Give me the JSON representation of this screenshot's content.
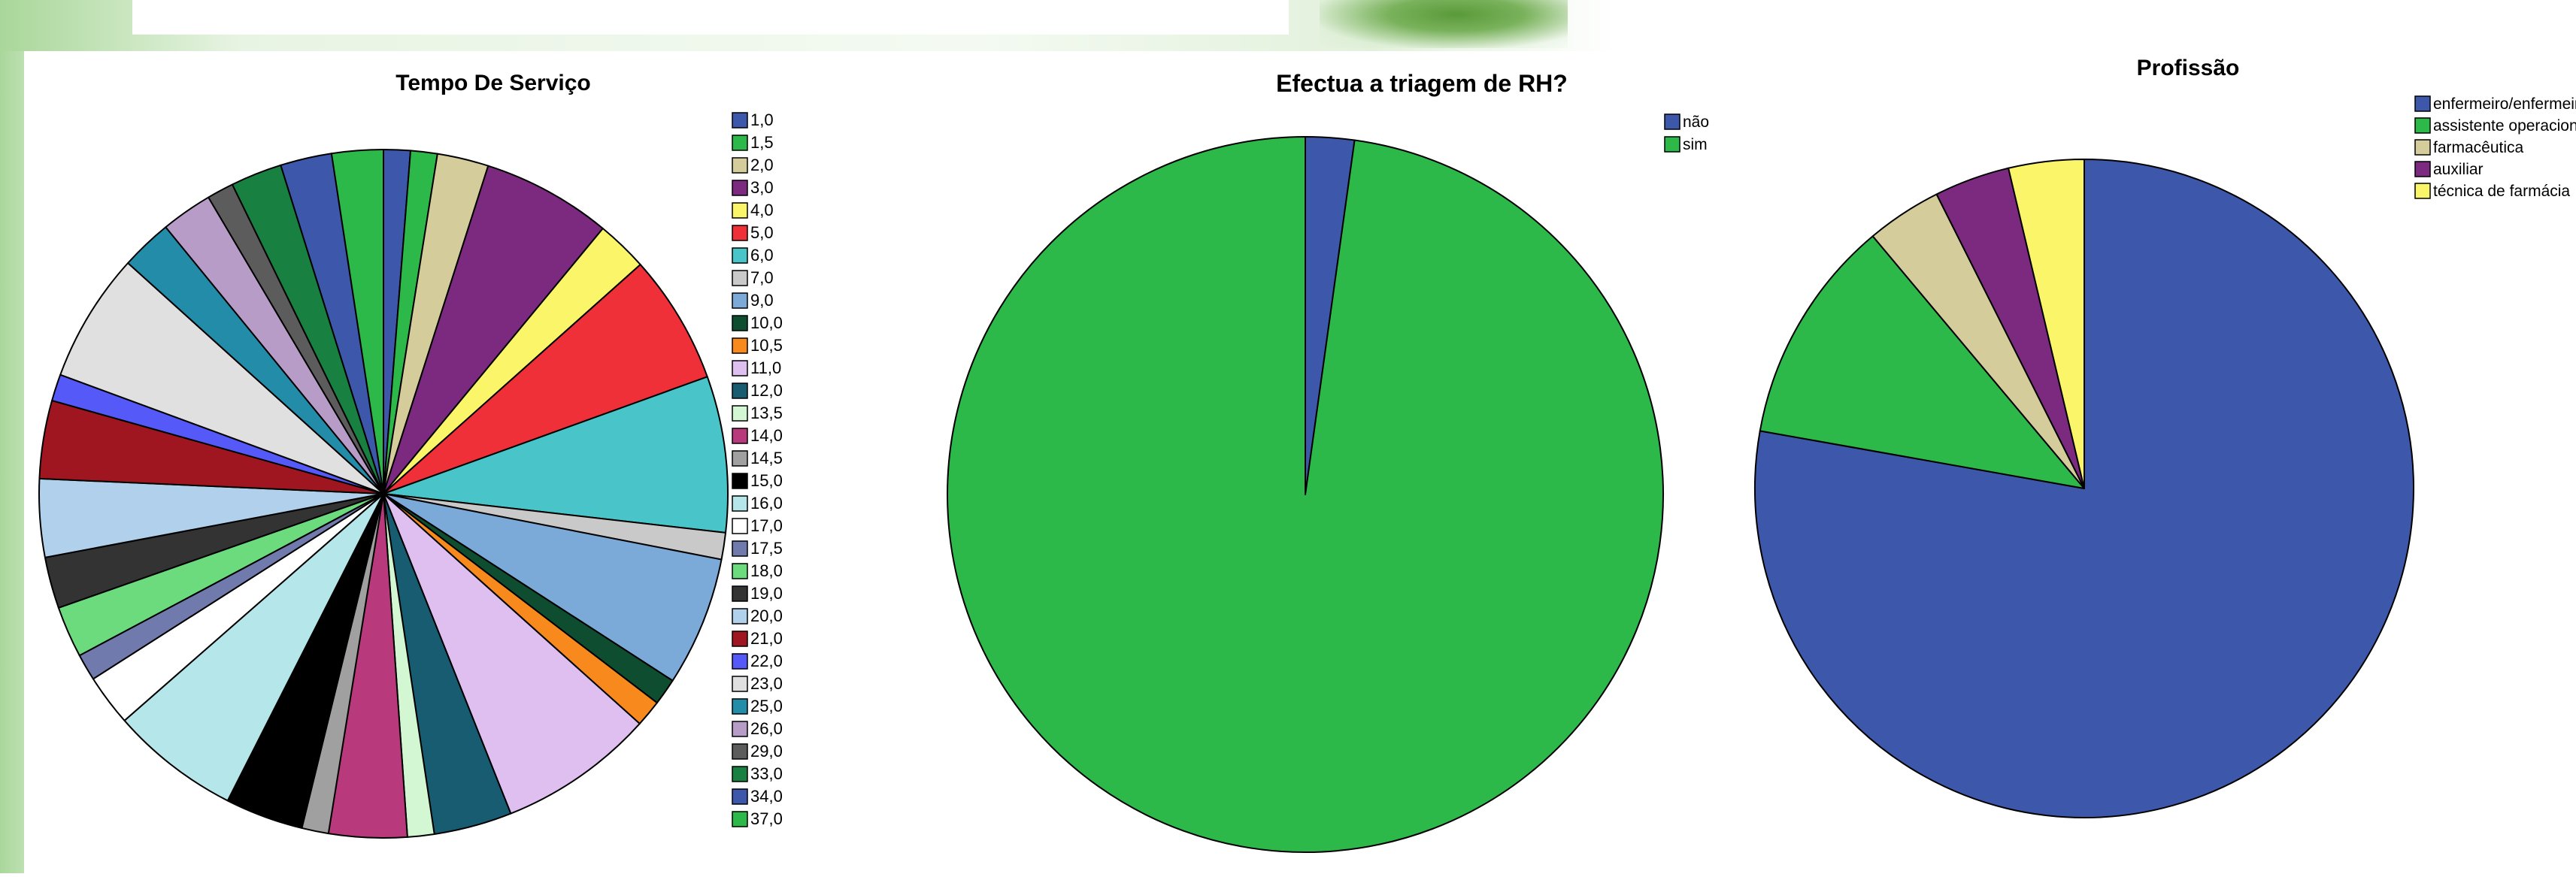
{
  "chart_data": [
    {
      "type": "pie",
      "title": "Tempo De Serviço",
      "legend_position": "right",
      "categories": [
        "1,0",
        "1,5",
        "2,0",
        "3,0",
        "4,0",
        "5,0",
        "6,0",
        "7,0",
        "9,0",
        "10,0",
        "10,5",
        "11,0",
        "12,0",
        "13,5",
        "14,0",
        "14,5",
        "15,0",
        "16,0",
        "17,0",
        "17,5",
        "18,0",
        "19,0",
        "20,0",
        "21,0",
        "22,0",
        "23,0",
        "25,0",
        "26,0",
        "29,0",
        "33,0",
        "34,0",
        "37,0"
      ],
      "values": [
        1.3,
        1.3,
        2.5,
        6.3,
        2.5,
        6.3,
        7.6,
        1.3,
        6.3,
        1.3,
        1.3,
        7.6,
        3.8,
        1.3,
        3.8,
        1.3,
        3.8,
        6.3,
        2.5,
        1.3,
        2.5,
        2.5,
        3.8,
        3.8,
        1.3,
        6.3,
        2.5,
        2.5,
        1.3,
        2.5,
        2.5,
        2.5
      ],
      "colors": [
        "#3d58ab",
        "#2db84a",
        "#d5cc9c",
        "#7b2a7f",
        "#fbf569",
        "#ef3038",
        "#49c4c8",
        "#c9c9c9",
        "#7ba9d8",
        "#0f4d30",
        "#f88a1d",
        "#dfbef0",
        "#175c70",
        "#d3f7d2",
        "#b9397d",
        "#a0a0a0",
        "#000000",
        "#b5e6e9",
        "#ffffff",
        "#717aad",
        "#6bdb7e",
        "#333333",
        "#b0d0ec",
        "#a01620",
        "#5559f7",
        "#e0e0e0",
        "#228ca9",
        "#b79cc8",
        "#5c5c5c",
        "#188040",
        "#3d58ab",
        "#2db84a"
      ]
    },
    {
      "type": "pie",
      "title": "Efectua a triagem de RH?",
      "legend_position": "top-right",
      "categories": [
        "não",
        "sim"
      ],
      "values": [
        2.2,
        97.8
      ],
      "colors": [
        "#3d58ab",
        "#2db84a"
      ]
    },
    {
      "type": "pie",
      "title": "Profissão",
      "legend_position": "top-right",
      "categories": [
        "enfermeiro/enfermeir",
        "assistente operacion",
        "farmacêutica",
        "auxiliar",
        "técnica de farmácia"
      ],
      "values": [
        77.8,
        11.1,
        3.7,
        3.7,
        3.7
      ],
      "colors": [
        "#3d58ab",
        "#2db84a",
        "#d5cc9c",
        "#7b2a7f",
        "#fbf569"
      ]
    }
  ]
}
